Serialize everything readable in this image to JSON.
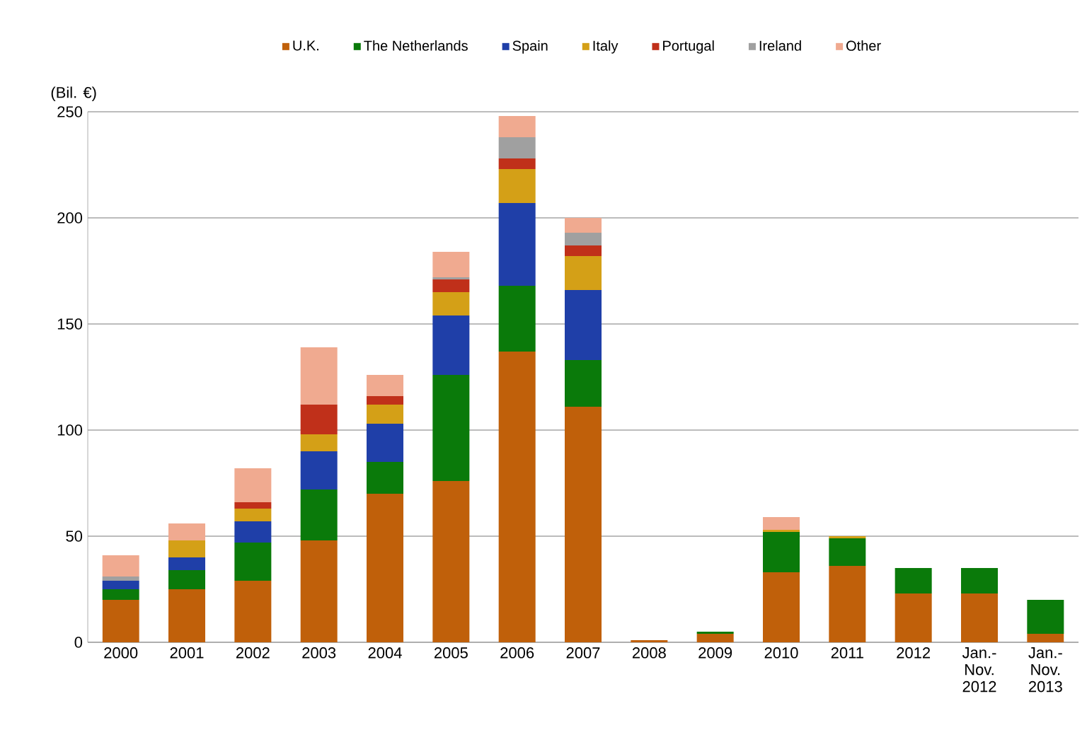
{
  "chart_data": {
    "type": "bar",
    "stacked": true,
    "ylabel": "(Bil. €)",
    "categories": [
      "2000",
      "2001",
      "2002",
      "2003",
      "2004",
      "2005",
      "2006",
      "2007",
      "2008",
      "2009",
      "2010",
      "2011",
      "2012",
      "Jan.- Nov. 2012",
      "Jan.- Nov. 2013"
    ],
    "series": [
      {
        "name": "U.K.",
        "color": "#c0600a",
        "values": [
          20,
          25,
          29,
          48,
          70,
          76,
          137,
          111,
          1,
          4,
          33,
          36,
          23,
          23,
          4
        ]
      },
      {
        "name": "The Netherlands",
        "color": "#0a7a0a",
        "values": [
          5,
          9,
          18,
          24,
          15,
          50,
          31,
          22,
          0,
          1,
          19,
          13,
          12,
          12,
          16
        ]
      },
      {
        "name": "Spain",
        "color": "#1f3fa8",
        "values": [
          4,
          6,
          10,
          18,
          18,
          28,
          39,
          33,
          0,
          0,
          0,
          0,
          0,
          0,
          0
        ]
      },
      {
        "name": "Italy",
        "color": "#d4a017",
        "values": [
          0,
          8,
          6,
          8,
          9,
          11,
          16,
          16,
          0,
          0,
          1,
          1,
          0,
          0,
          0
        ]
      },
      {
        "name": "Portugal",
        "color": "#c0301a",
        "values": [
          0,
          0,
          3,
          14,
          4,
          6,
          5,
          5,
          0,
          0,
          0,
          0,
          0,
          0,
          0
        ]
      },
      {
        "name": "Ireland",
        "color": "#a0a0a0",
        "values": [
          2,
          0,
          0,
          0,
          0,
          1,
          10,
          6,
          0,
          0,
          0,
          0,
          0,
          0,
          0
        ]
      },
      {
        "name": "Other",
        "color": "#f0aa90",
        "values": [
          10,
          8,
          16,
          27,
          10,
          12,
          10,
          7,
          0,
          0,
          6,
          0,
          0,
          0,
          0
        ]
      }
    ],
    "ylim": [
      0,
      250
    ],
    "yticks": [
      0,
      50,
      100,
      150,
      200,
      250
    ],
    "grid": "y",
    "legend": "top"
  }
}
